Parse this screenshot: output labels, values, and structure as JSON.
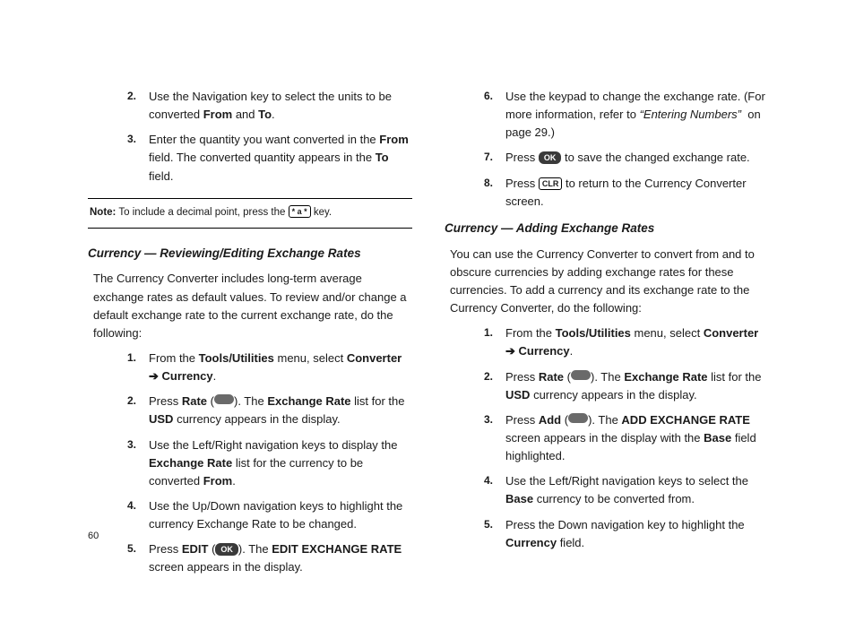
{
  "pageNumber": "60",
  "left": {
    "topList": [
      {
        "n": "2.",
        "html": "Use the Navigation key to select the units to be converted <span class='b'>From</span> and <span class='b'>To</span>."
      },
      {
        "n": "3.",
        "html": "Enter the quantity you want converted in the <span class='b'>From</span> field. The converted quantity appears in the <span class='b'>To</span> field."
      }
    ],
    "noteLabel": "Note:",
    "noteHtml": "To include a decimal point, press the <span class='keycap' data-name='star-key-icon' data-interactable='false'>*&nbsp;a&nbsp;*</span> key.",
    "heading": "Currency — Reviewing/Editing Exchange Rates",
    "intro": "The Currency Converter includes long-term average exchange rates as default values. To review and/or change a default exchange rate to the current exchange rate, do the following:",
    "list": [
      {
        "n": "1.",
        "html": "From the <span class='b'>Tools/Utilities</span> menu, select <span class='b'>Converter</span> <span class='arrow'>&#10132;</span> <span class='b'>Currency</span>."
      },
      {
        "n": "2.",
        "html": "Press <span class='b'>Rate</span> (<span class='keycap pill' data-name='softkey-pill-icon' data-interactable='false'></span>). The <span class='b'>Exchange Rate</span> list for the <span class='b'>USD</span> currency appears in the display."
      },
      {
        "n": "3.",
        "html": "Use the Left/Right navigation keys to display the <span class='b'>Exchange Rate</span> list for the currency to be converted <span class='b'>From</span>."
      },
      {
        "n": "4.",
        "html": "Use the Up/Down navigation keys to highlight the currency Exchange Rate to be changed."
      },
      {
        "n": "5.",
        "html": "Press <span class='b'>EDIT</span> (<span class='keycap dark' data-name='ok-key-icon' data-interactable='false'>OK</span>). The <span class='b'>EDIT EXCHANGE RATE</span> screen appears in the display."
      }
    ]
  },
  "right": {
    "topList": [
      {
        "n": "6.",
        "html": "Use the keypad to change the exchange rate. (For more information, refer to <span class='i'>&ldquo;Entering Numbers&rdquo;</span>&nbsp; on page 29.)"
      },
      {
        "n": "7.",
        "html": "Press <span class='keycap dark' data-name='ok-key-icon' data-interactable='false'>OK</span> to save the changed exchange rate."
      },
      {
        "n": "8.",
        "html": "Press <span class='keycap' data-name='clr-key-icon' data-interactable='false'>CLR</span> to return to the Currency Converter screen."
      }
    ],
    "heading": "Currency — Adding Exchange Rates",
    "intro": "You can use the Currency Converter to convert from and to obscure currencies by adding exchange rates for these currencies. To add a currency and its exchange rate to the Currency Converter, do the following:",
    "list": [
      {
        "n": "1.",
        "html": "From the <span class='b'>Tools/Utilities</span> menu, select <span class='b'>Converter</span> <span class='arrow'>&#10132;</span> <span class='b'>Currency</span>."
      },
      {
        "n": "2.",
        "html": "Press <span class='b'>Rate</span> (<span class='keycap pill' data-name='softkey-pill-icon' data-interactable='false'></span>). The <span class='b'>Exchange Rate</span> list for the <span class='b'>USD</span> currency appears in the display."
      },
      {
        "n": "3.",
        "html": "Press <span class='b'>Add</span> (<span class='keycap pill' data-name='softkey-pill-icon' data-interactable='false'></span>). The <span class='b'>ADD EXCHANGE RATE</span> screen appears in the display with the <span class='b'>Base</span> field highlighted."
      },
      {
        "n": "4.",
        "html": "Use the Left/Right navigation keys to select the <span class='b'>Base</span> currency to be converted from."
      },
      {
        "n": "5.",
        "html": "Press the Down navigation key to highlight the <span class='b'>Currency</span> field."
      }
    ]
  }
}
